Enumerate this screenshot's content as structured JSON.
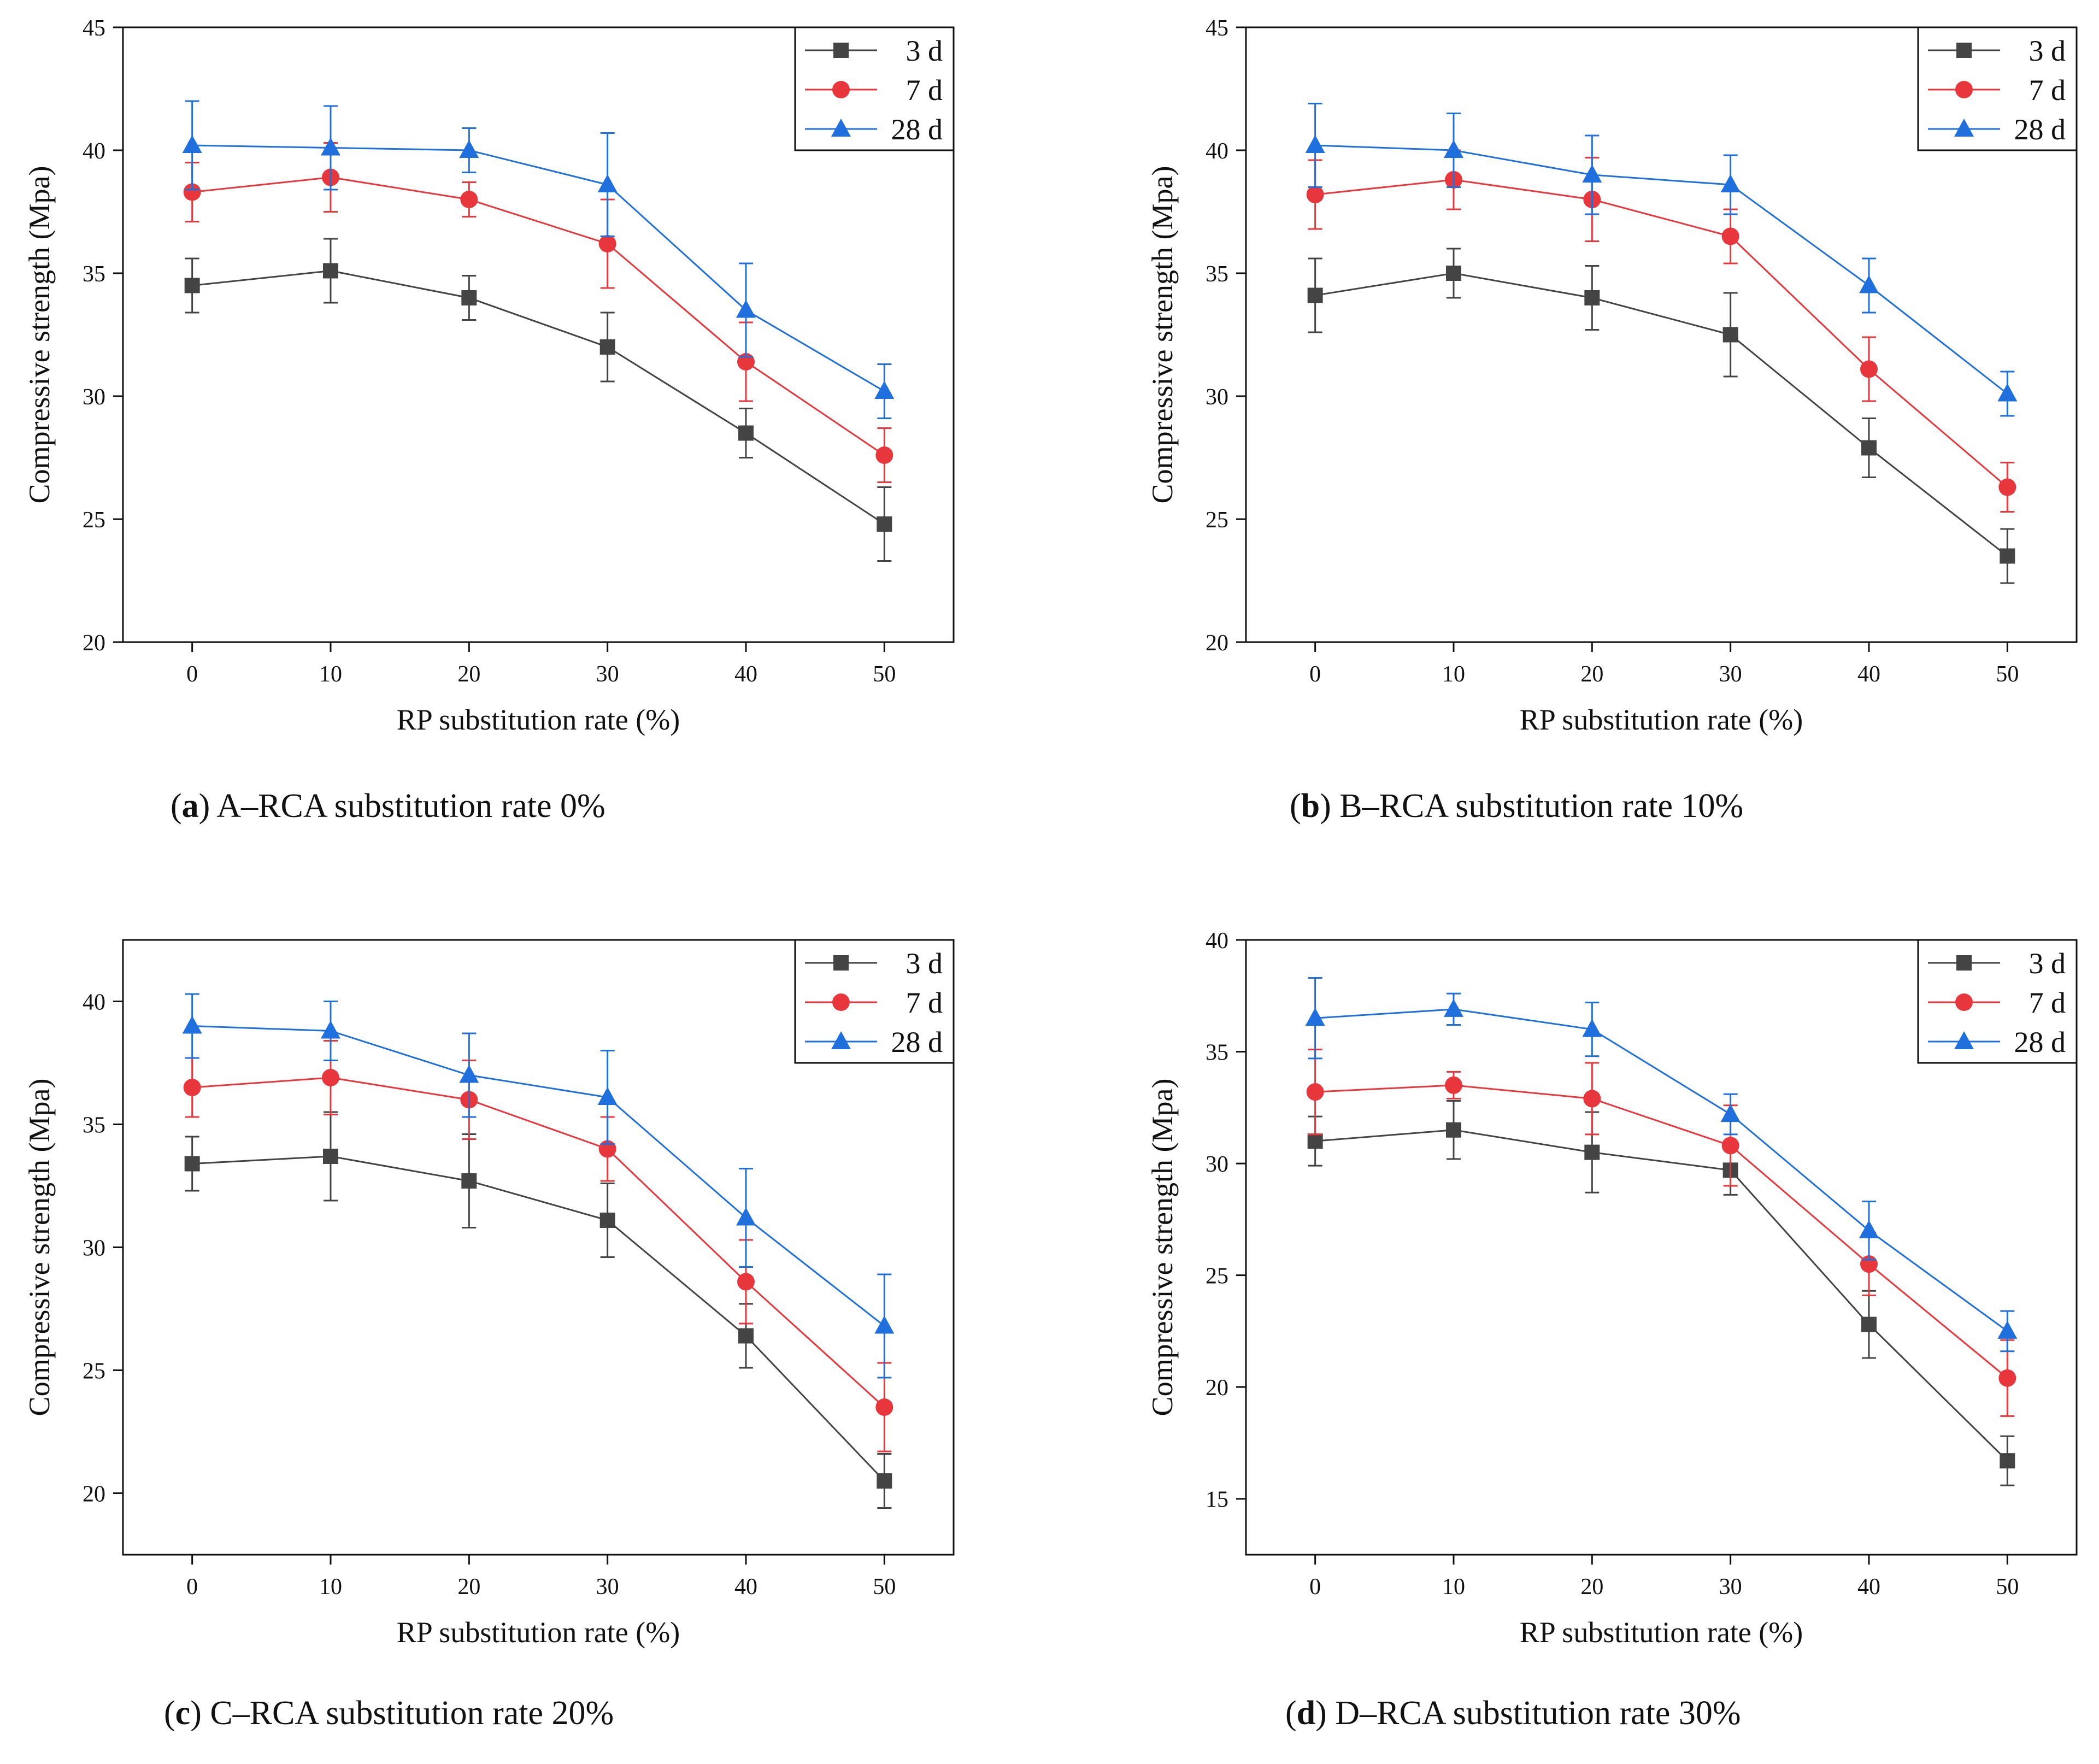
{
  "colors": {
    "d3": "#444444",
    "d7": "#e8373c",
    "d28": "#1f6fdc"
  },
  "chart_data": [
    {
      "type": "line",
      "panel": "a",
      "caption_rest": " A–RCA substitution rate 0%",
      "xlabel": "RP substitution rate (%)",
      "ylabel": "Compressive strength (Mpa)",
      "x": [
        0,
        10,
        20,
        30,
        40,
        50
      ],
      "xlim": [
        -5,
        55
      ],
      "ylim": [
        20,
        45
      ],
      "yticks": [
        20,
        25,
        30,
        35,
        40,
        45
      ],
      "legend_position": "top-right",
      "series": [
        {
          "name": "3 d",
          "marker": "square",
          "values": [
            34.5,
            35.1,
            34.0,
            32.0,
            28.5,
            24.8
          ],
          "error": [
            1.1,
            1.3,
            0.9,
            1.4,
            1.0,
            1.5
          ]
        },
        {
          "name": "7 d",
          "marker": "circle",
          "values": [
            38.3,
            38.9,
            38.0,
            36.2,
            31.4,
            27.6
          ],
          "error": [
            1.2,
            1.4,
            0.7,
            1.8,
            1.6,
            1.1
          ]
        },
        {
          "name": "28 d",
          "marker": "triangle",
          "values": [
            40.2,
            40.1,
            40.0,
            38.6,
            33.5,
            30.2
          ],
          "error": [
            1.8,
            1.7,
            0.9,
            2.1,
            1.9,
            1.1
          ]
        }
      ]
    },
    {
      "type": "line",
      "panel": "b",
      "caption_rest": " B–RCA substitution rate 10%",
      "xlabel": "RP substitution rate (%)",
      "ylabel": "Compressive strength (Mpa)",
      "x": [
        0,
        10,
        20,
        30,
        40,
        50
      ],
      "xlim": [
        -5,
        55
      ],
      "ylim": [
        20,
        45
      ],
      "yticks": [
        20,
        25,
        30,
        35,
        40,
        45
      ],
      "legend_position": "top-right",
      "series": [
        {
          "name": "3 d",
          "marker": "square",
          "values": [
            34.1,
            35.0,
            34.0,
            32.5,
            27.9,
            23.5
          ],
          "error": [
            1.5,
            1.0,
            1.3,
            1.7,
            1.2,
            1.1
          ]
        },
        {
          "name": "7 d",
          "marker": "circle",
          "values": [
            38.2,
            38.8,
            38.0,
            36.5,
            31.1,
            26.3
          ],
          "error": [
            1.4,
            1.2,
            1.7,
            1.1,
            1.3,
            1.0
          ]
        },
        {
          "name": "28 d",
          "marker": "triangle",
          "values": [
            40.2,
            40.0,
            39.0,
            38.6,
            34.5,
            30.1
          ],
          "error": [
            1.7,
            1.5,
            1.6,
            1.2,
            1.1,
            0.9
          ]
        }
      ]
    },
    {
      "type": "line",
      "panel": "c",
      "caption_rest": " C–RCA substitution rate 20%",
      "xlabel": "RP substitution rate (%)",
      "ylabel": "Compressive strength (Mpa)",
      "x": [
        0,
        10,
        20,
        30,
        40,
        50
      ],
      "xlim": [
        -5,
        55
      ],
      "ylim": [
        17.5,
        42.5
      ],
      "yticks": [
        20,
        25,
        30,
        35,
        40
      ],
      "legend_position": "top-right",
      "series": [
        {
          "name": "3 d",
          "marker": "square",
          "values": [
            33.4,
            33.7,
            32.7,
            31.1,
            26.4,
            20.5
          ],
          "error": [
            1.1,
            1.8,
            1.9,
            1.5,
            1.3,
            1.1
          ]
        },
        {
          "name": "7 d",
          "marker": "circle",
          "values": [
            36.5,
            36.9,
            36.0,
            34.0,
            28.6,
            23.5
          ],
          "error": [
            1.2,
            1.5,
            1.6,
            1.3,
            1.7,
            1.8
          ]
        },
        {
          "name": "28 d",
          "marker": "triangle",
          "values": [
            39.0,
            38.8,
            37.0,
            36.1,
            31.2,
            26.8
          ],
          "error": [
            1.3,
            1.2,
            1.7,
            1.9,
            2.0,
            2.1
          ]
        }
      ]
    },
    {
      "type": "line",
      "panel": "d",
      "caption_rest": " D–RCA substitution rate 30%",
      "xlabel": "RP substitution rate (%)",
      "ylabel": "Compressive strength (Mpa)",
      "x": [
        0,
        10,
        20,
        30,
        40,
        50
      ],
      "xlim": [
        -5,
        55
      ],
      "ylim": [
        12.5,
        40
      ],
      "yticks": [
        15,
        20,
        25,
        30,
        35,
        40
      ],
      "legend_position": "top-right",
      "series": [
        {
          "name": "3 d",
          "marker": "square",
          "values": [
            31.0,
            31.5,
            30.5,
            29.7,
            22.8,
            16.7
          ],
          "error": [
            1.1,
            1.3,
            1.8,
            1.1,
            1.5,
            1.1
          ]
        },
        {
          "name": "7 d",
          "marker": "circle",
          "values": [
            33.2,
            33.5,
            32.9,
            30.8,
            25.5,
            20.4
          ],
          "error": [
            1.9,
            0.6,
            1.6,
            1.8,
            1.4,
            1.7
          ]
        },
        {
          "name": "28 d",
          "marker": "triangle",
          "values": [
            36.5,
            36.9,
            36.0,
            32.2,
            27.0,
            22.5
          ],
          "error": [
            1.8,
            0.7,
            1.2,
            0.9,
            1.3,
            0.9
          ]
        }
      ]
    }
  ],
  "captions": [
    {
      "letter": "a"
    },
    {
      "letter": "b"
    },
    {
      "letter": "c"
    },
    {
      "letter": "d"
    }
  ]
}
